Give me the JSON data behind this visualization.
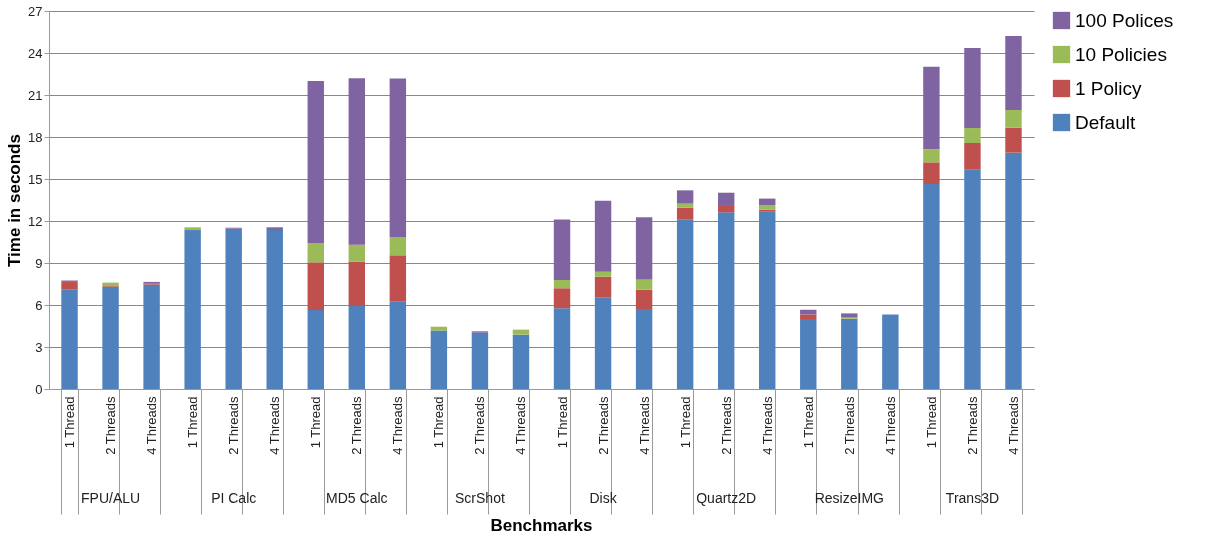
{
  "chart_data": {
    "type": "bar",
    "stacked": true,
    "xlabel": "Benchmarks",
    "ylabel": "Time in seconds",
    "categories": [
      "1 Thread",
      "2 Threads",
      "4 Threads",
      "1 Thread",
      "2 Threads",
      "4 Threads",
      "1 Thread",
      "2 Threads",
      "4 Threads",
      "1 Thread",
      "2 Threads",
      "4 Threads",
      "1 Thread",
      "2 Threads",
      "4 Threads",
      "1 Thread",
      "2 Threads",
      "4 Threads",
      "1 Thread",
      "2 Threads",
      "4 Threads",
      "1 Thread",
      "2 Threads",
      "4 Threads"
    ],
    "annotations": [
      "FPU/ALU",
      "PI Calc",
      "MD5 Calc",
      "ScrShot",
      "Disk",
      "Quartz2D",
      "ResizeIMG",
      "Trans3D"
    ],
    "series": [
      {
        "name": "Default",
        "color": "#4f81bd",
        "values": [
          7.1,
          7.3,
          7.45,
          11.35,
          11.45,
          11.35,
          5.64,
          5.93,
          6.26,
          4.17,
          4.02,
          3.88,
          5.76,
          6.55,
          5.71,
          12.12,
          12.62,
          12.69,
          5.0,
          5.02,
          5.33,
          14.64,
          15.69,
          16.88
        ]
      },
      {
        "name": "1 Policy",
        "color": "#c0504d",
        "values": [
          0.55,
          0.05,
          0.1,
          0,
          0,
          0,
          3.41,
          3.17,
          3.29,
          0,
          0,
          0,
          1.43,
          1.47,
          1.38,
          0.83,
          0.52,
          0.11,
          0.33,
          0,
          0,
          1.55,
          1.88,
          1.79
        ]
      },
      {
        "name": "10 Policies",
        "color": "#9bbb59",
        "values": [
          0,
          0.25,
          0,
          0.2,
          0,
          0,
          1.38,
          1.21,
          1.31,
          0.28,
          0,
          0.36,
          0.6,
          0.36,
          0.74,
          0.29,
          0,
          0.34,
          null,
          0.08,
          0,
          0.93,
          1.07,
          1.26
        ]
      },
      {
        "name": "100 Polices",
        "color": "#8064a2",
        "values": [
          0.1,
          0,
          0.1,
          0,
          0.07,
          0.2,
          11.57,
          11.88,
          11.31,
          0,
          0.1,
          0,
          4.31,
          5.07,
          4.43,
          0.95,
          0.88,
          0.46,
          0.33,
          0.3,
          0,
          5.9,
          5.72,
          5.28
        ]
      }
    ],
    "ylim": [
      0,
      27
    ],
    "yticks": [
      0,
      3,
      6,
      9,
      12,
      15,
      18,
      21,
      24,
      27
    ],
    "grid": "y",
    "legend": "right"
  }
}
